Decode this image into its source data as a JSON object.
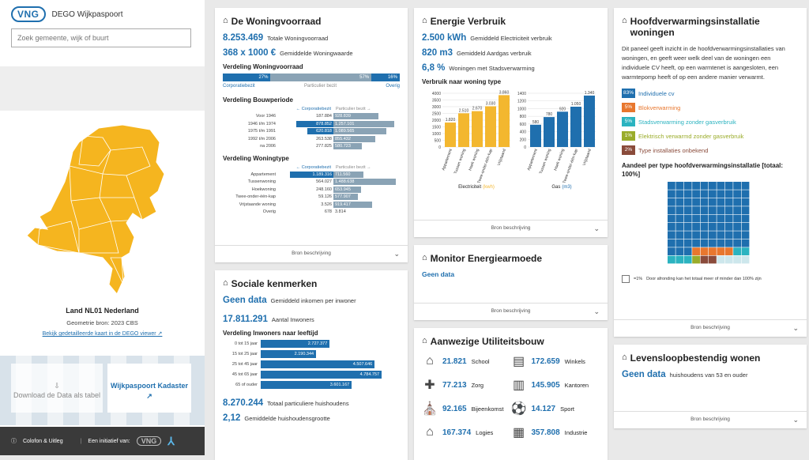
{
  "header": {
    "logo": "VNG",
    "app_name": "DEGO Wijkpaspoort"
  },
  "search": {
    "placeholder": "Zoek gemeente, wijk of buurt"
  },
  "region": {
    "title": "Land NL01 Nederland",
    "geometry": "Geometrie bron: 2023 CBS",
    "map_link": "Bekijk gedetailleerde kaart in de DEGO viewer"
  },
  "actions": {
    "download": "Download de Data als tabel",
    "kadaster": "Wijkpaspoort Kadaster"
  },
  "footer": {
    "colofon": "Colofon & Uitleg",
    "initiative": "Een initiatief van:",
    "logo": "VNG"
  },
  "colors": {
    "accent": "#1f6fae",
    "map": "#f5b51f",
    "gray_bar": "#8aa3b5",
    "chart_yellow": "#f3b72f"
  },
  "source_label": "Bron beschrijving",
  "woning": {
    "title": "De Woningvoorraad",
    "stats": [
      {
        "value": "8.253.469",
        "label": "Totale Woningvoorraad"
      },
      {
        "value": "368 x 1000 €",
        "label": "Gemiddelde Woningwaarde"
      }
    ],
    "verdeling": {
      "title": "Verdeling Woningvoorraad",
      "segments": [
        {
          "label": "Corporatiebezit",
          "pct": "27%",
          "value": 27
        },
        {
          "label": "Particulier bezit",
          "pct": "57%",
          "value": 57
        },
        {
          "label": "Overig",
          "pct": "16%",
          "value": 16
        }
      ]
    },
    "bouw": {
      "title": "Verdeling Bouwperiode",
      "left": "← Corporatiebezit",
      "right": "Particulier bezit →",
      "rows": [
        {
          "name": "Voor 1946",
          "l": "187.884",
          "r": "928.839",
          "lv": 187884,
          "rv": 928839
        },
        {
          "name": "1946 t/m 1974",
          "l": "878.852",
          "r": "1.257.101",
          "lv": 878852,
          "rv": 1257101
        },
        {
          "name": "1975 t/m 1991",
          "l": "620.818",
          "r": "1.089.565",
          "lv": 620818,
          "rv": 1089565
        },
        {
          "name": "1992 t/m 2006",
          "l": "263.538",
          "r": "855.432",
          "lv": 263538,
          "rv": 855432
        },
        {
          "name": "na 2006",
          "l": "277.825",
          "r": "580.723",
          "lv": 277825,
          "rv": 580723
        }
      ]
    },
    "type": {
      "title": "Verdeling Woningtype",
      "left": "← Corporatiebezit",
      "right": "Particulier bezit →",
      "rows": [
        {
          "name": "Appartement",
          "l": "1.189.316",
          "r": "711.560",
          "lv": 1189316,
          "rv": 711560
        },
        {
          "name": "Tussenwoning",
          "l": "564.027",
          "r": "1.488.638",
          "lv": 564027,
          "rv": 1488638
        },
        {
          "name": "Hoekwoning",
          "l": "248.160",
          "r": "653.945",
          "lv": 248160,
          "rv": 653945
        },
        {
          "name": "Twee-onder-één-kap",
          "l": "59.126",
          "r": "577.907",
          "lv": 59126,
          "rv": 577907
        },
        {
          "name": "Vrijstaande woning",
          "l": "3.526",
          "r": "919.417",
          "lv": 3526,
          "rv": 919417
        },
        {
          "name": "Overig",
          "l": "678",
          "r": "3.814",
          "lv": 678,
          "rv": 3814
        }
      ]
    }
  },
  "energie": {
    "title": "Energie Verbruik",
    "stats": [
      {
        "value": "2.500 kWh",
        "label": "Gemiddeld Electriciteit verbruik"
      },
      {
        "value": "820 m3",
        "label": "Gemiddeld Aardgas verbruik"
      },
      {
        "value": "6,8 %",
        "label": "Woningen met Stadsverwarming"
      }
    ],
    "chart_title": "Verbruik naar woning type",
    "elec_caption": "Electriciteit",
    "elec_unit": "(kwh)",
    "gas_caption": "Gas",
    "gas_unit": "(m3)"
  },
  "chart_data": [
    {
      "type": "bar",
      "title": "",
      "xlabel": "Electriciteit (kwh)",
      "categories": [
        "Appartement",
        "Tussen woning",
        "Hoek woning",
        "Twee-onder-één-kap",
        "Vrijstaand"
      ],
      "values": [
        1820,
        2510,
        2670,
        3030,
        3860
      ],
      "ylim": [
        0,
        4000
      ],
      "yticks": [
        0,
        500,
        1000,
        1500,
        2000,
        2500,
        3000,
        3500,
        4000
      ]
    },
    {
      "type": "bar",
      "title": "",
      "xlabel": "Gas (m3)",
      "categories": [
        "Appartement",
        "Tussen woning",
        "Hoek woning",
        "Twee-onder-één-kap",
        "Vrijstaand"
      ],
      "values": [
        580,
        780,
        920,
        1050,
        1340
      ],
      "ylim": [
        0,
        1400
      ],
      "yticks": [
        0,
        200,
        400,
        600,
        800,
        1000,
        1200,
        1400
      ]
    }
  ],
  "armoede": {
    "title": "Monitor Energiearmoede",
    "value": "Geen data"
  },
  "utiliteit": {
    "title": "Aanwezige Utiliteitsbouw",
    "items": [
      {
        "icon": "school-icon",
        "glyph": "⌂",
        "value": "21.821",
        "label": "School"
      },
      {
        "icon": "shop-icon",
        "glyph": "▤",
        "value": "172.659",
        "label": "Winkels"
      },
      {
        "icon": "care-icon",
        "glyph": "✚",
        "value": "77.213",
        "label": "Zorg"
      },
      {
        "icon": "office-icon",
        "glyph": "▥",
        "value": "145.905",
        "label": "Kantoren"
      },
      {
        "icon": "meeting-icon",
        "glyph": "⛪",
        "value": "92.165",
        "label": "Bijeenkomst"
      },
      {
        "icon": "sport-icon",
        "glyph": "⚽",
        "value": "14.127",
        "label": "Sport"
      },
      {
        "icon": "lodging-icon",
        "glyph": "⌂",
        "value": "167.374",
        "label": "Logies"
      },
      {
        "icon": "industry-icon",
        "glyph": "▦",
        "value": "357.808",
        "label": "Industrie"
      }
    ]
  },
  "sociaal": {
    "title": "Sociale kenmerken",
    "income_value": "Geen data",
    "income_label": "Gemiddeld inkomen per inwoner",
    "inhabitants_value": "17.811.291",
    "inhabitants_label": "Aantal Inwoners",
    "age_title": "Verdeling Inwoners naar leeftijd",
    "ages": [
      {
        "name": "0 tot 15 jaar",
        "label": "2.727.377",
        "v": 2727377
      },
      {
        "name": "15 tot 25 jaar",
        "label": "2.190.344",
        "v": 2190344
      },
      {
        "name": "25 tot 45 jaar",
        "label": "4.507.646",
        "v": 4507646
      },
      {
        "name": "45 tot 65 jaar",
        "label": "4.784.757",
        "v": 4784757
      },
      {
        "name": "65 of ouder",
        "label": "3.601.167",
        "v": 3601167
      }
    ],
    "households_value": "8.270.244",
    "households_label": "Totaal particuliere huishoudens",
    "hh_size_value": "2,12",
    "hh_size_label": "Gemiddelde huishoudensgrootte"
  },
  "verwarming": {
    "title": "Hoofdverwarmingsinstallatie woningen",
    "description": "Dit paneel geeft inzicht in de hoofdverwarmingsinstallaties van woningen, en geeft weer welk deel van de woningen een individuele CV heeft, op een warmtenet is aangesloten, een warmtepomp heeft of op een andere manier verwarmt.",
    "legend": [
      {
        "pct": "83%",
        "label": "Individuele cv",
        "color": "#1f6fae",
        "v": 83
      },
      {
        "pct": "5%",
        "label": "Blokverwarming",
        "color": "#e8772e",
        "v": 5
      },
      {
        "pct": "5%",
        "label": "Stadsverwarming zonder gasverbruik",
        "color": "#2bb3c0",
        "v": 5
      },
      {
        "pct": "1%",
        "label": "Elektrisch verwarmd zonder gasverbruik",
        "color": "#9aac2a",
        "v": 1
      },
      {
        "pct": "2%",
        "label": "Type installaties onbekend",
        "color": "#8a4b3b",
        "v": 2
      }
    ],
    "grid_title": "Aandeel per type hoofdverwarmingsinstallatie [totaal: 100%]",
    "grid_note": "=1%",
    "grid_note2": "Door afronding kan het totaal meer of minder dan 100% zijn"
  },
  "levensloop": {
    "title": "Levensloopbestendig wonen",
    "value": "Geen data",
    "label": "huishoudens van 53 en ouder"
  }
}
